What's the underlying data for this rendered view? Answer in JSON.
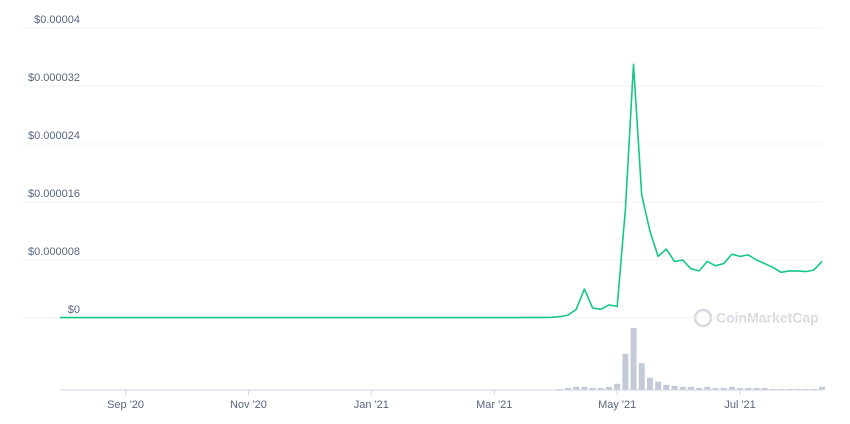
{
  "chart_data": {
    "type": "line",
    "color": "#16c784",
    "volume_color": "#c5cad9",
    "watermark": "CoinMarketCap",
    "ylim": [
      0,
      4e-05
    ],
    "yticks": [
      {
        "value": 0,
        "label": "$0"
      },
      {
        "value": 8e-06,
        "label": "$0.000008"
      },
      {
        "value": 1.6e-05,
        "label": "$0.000016"
      },
      {
        "value": 2.4e-05,
        "label": "$0.000024"
      },
      {
        "value": 3.2e-05,
        "label": "$0.000032"
      },
      {
        "value": 4e-05,
        "label": "$0.00004"
      }
    ],
    "grid": true,
    "categories": [
      null,
      null,
      null,
      null,
      null,
      null,
      null,
      null,
      "Sep '20",
      null,
      null,
      null,
      null,
      null,
      null,
      null,
      null,
      null,
      null,
      null,
      null,
      null,
      null,
      "Nov '20",
      null,
      null,
      null,
      null,
      null,
      null,
      null,
      null,
      null,
      null,
      null,
      null,
      null,
      null,
      "Jan '21",
      null,
      null,
      null,
      null,
      null,
      null,
      null,
      null,
      null,
      null,
      null,
      null,
      null,
      null,
      "Mar '21",
      null,
      null,
      null,
      null,
      null,
      null,
      null,
      null,
      null,
      null,
      null,
      null,
      null,
      null,
      "May '21",
      null,
      null,
      null,
      null,
      null,
      null,
      null,
      null,
      null,
      null,
      null,
      null,
      null,
      null,
      "Jul '21",
      null,
      null,
      null,
      null,
      null,
      null,
      null,
      null,
      null,
      null
    ],
    "values": [
      5e-08,
      5e-08,
      5e-08,
      5e-08,
      5e-08,
      5e-08,
      5e-08,
      5e-08,
      5e-08,
      5e-08,
      5e-08,
      5e-08,
      5e-08,
      5e-08,
      5e-08,
      5e-08,
      5e-08,
      5e-08,
      5e-08,
      5e-08,
      5e-08,
      5e-08,
      5e-08,
      5e-08,
      5e-08,
      5e-08,
      5e-08,
      5e-08,
      5e-08,
      5e-08,
      5e-08,
      5e-08,
      5e-08,
      5e-08,
      5e-08,
      5e-08,
      5e-08,
      5e-08,
      5e-08,
      5e-08,
      5e-08,
      5e-08,
      5e-08,
      5e-08,
      5e-08,
      5e-08,
      5e-08,
      5e-08,
      5e-08,
      5e-08,
      5e-08,
      5e-08,
      5e-08,
      5e-08,
      5e-08,
      5e-08,
      5e-08,
      8e-08,
      8e-08,
      8e-08,
      1e-07,
      2e-07,
      4e-07,
      1.2e-06,
      4e-06,
      1.4e-06,
      1.2e-06,
      1.8e-06,
      1.6e-06,
      1.5e-05,
      3.5e-05,
      1.7e-05,
      1.2e-05,
      8.5e-06,
      9.5e-06,
      7.8e-06,
      8e-06,
      6.8e-06,
      6.5e-06,
      7.8e-06,
      7.2e-06,
      7.5e-06,
      8.8e-06,
      8.5e-06,
      8.7e-06,
      8e-06,
      7.5e-06,
      7e-06,
      6.3e-06,
      6.5e-06,
      6.5e-06,
      6.4e-06,
      6.6e-06,
      7.8e-06
    ],
    "volume": [
      0,
      0,
      0,
      0,
      0,
      0,
      0,
      0,
      0,
      0,
      0,
      0,
      0,
      0,
      0,
      0,
      0,
      0,
      0,
      0,
      0,
      0,
      0,
      0,
      0,
      0,
      0,
      0,
      0,
      0,
      0,
      0,
      0,
      0,
      0,
      0,
      0,
      0,
      0,
      0,
      0,
      0,
      0,
      0,
      0,
      0,
      0,
      0,
      0,
      0,
      0,
      0,
      0,
      0,
      0,
      0,
      0,
      0,
      0,
      0,
      0.5,
      1,
      2,
      3,
      3,
      2,
      2,
      3,
      6,
      35,
      60,
      26,
      12,
      8,
      5,
      4,
      3,
      3,
      2,
      3,
      2,
      2,
      3,
      2,
      2,
      2,
      2,
      1,
      1,
      1,
      1,
      1,
      1,
      3
    ]
  }
}
